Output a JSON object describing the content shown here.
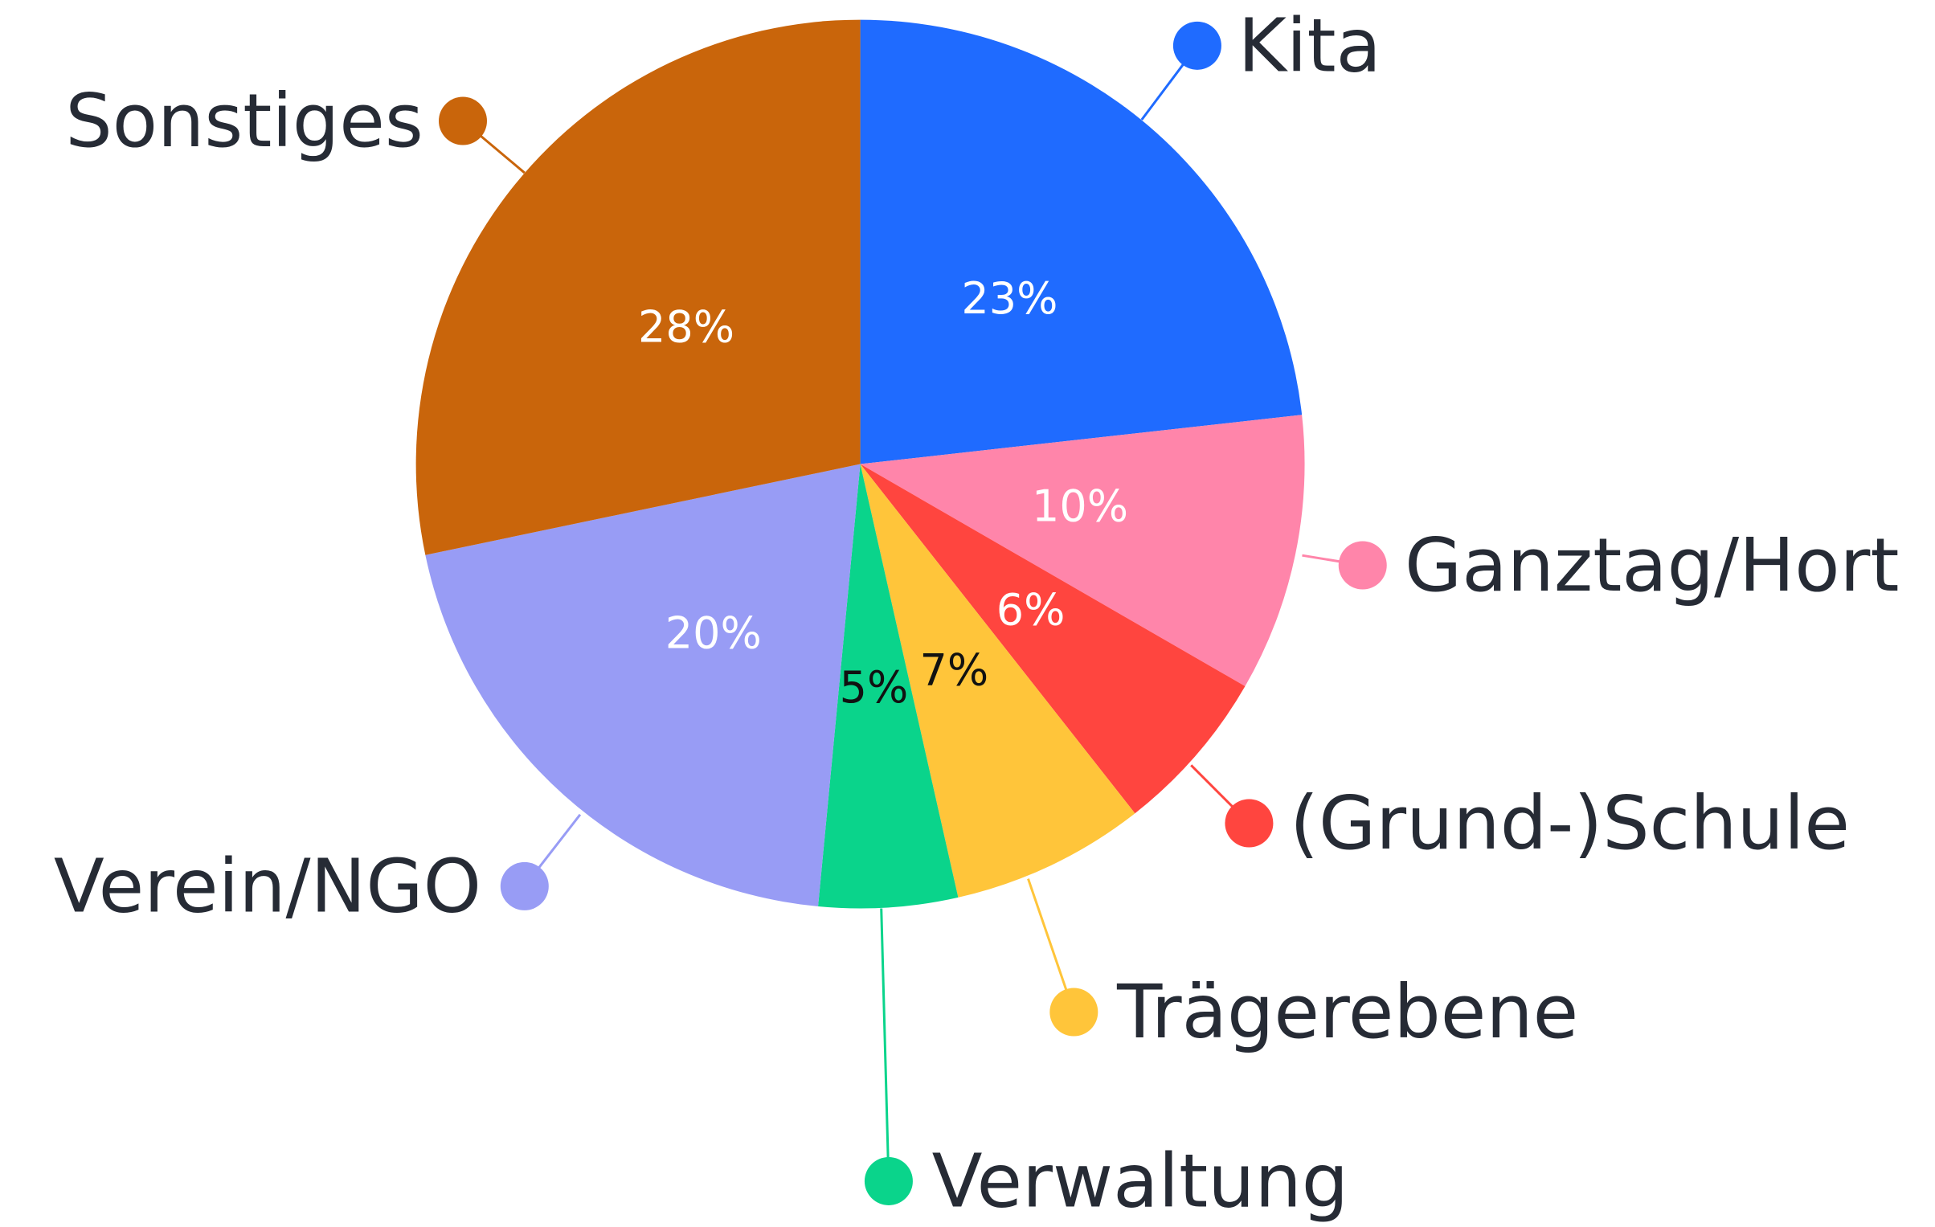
{
  "chart_data": {
    "type": "pie",
    "categories": [
      "Kita",
      "Ganztag/Hort",
      "(Grund-)Schule",
      "Trägerebene",
      "Verwaltung",
      "Verein/NGO",
      "Sonstiges"
    ],
    "values": [
      23,
      10,
      6,
      7,
      5,
      20,
      28
    ],
    "value_labels": [
      "23%",
      "10%",
      "6%",
      "7%",
      "5%",
      "20%",
      "28%"
    ],
    "colors": [
      "#1f6bff",
      "#ff85aa",
      "#ff453f",
      "#ffc53a",
      "#0ad48b",
      "#989cf5",
      "#c9650b"
    ],
    "label_colors": [
      "#ffffff",
      "#ffffff",
      "#ffffff",
      "#111111",
      "#111111",
      "#ffffff",
      "#ffffff"
    ]
  }
}
